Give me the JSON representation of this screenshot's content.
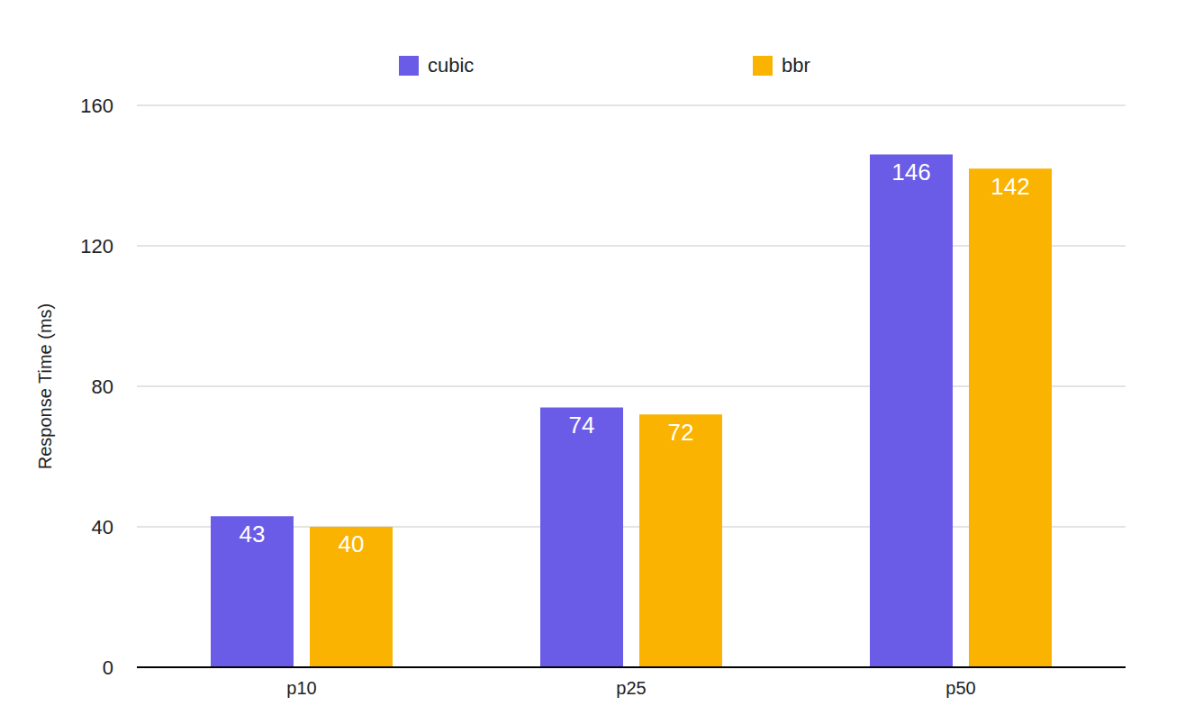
{
  "chart_data": {
    "type": "bar",
    "categories": [
      "p10",
      "p25",
      "p50"
    ],
    "series": [
      {
        "name": "cubic",
        "color": "#6b5ce7",
        "values": [
          43,
          74,
          146
        ]
      },
      {
        "name": "bbr",
        "color": "#f9b300",
        "values": [
          40,
          72,
          142
        ]
      }
    ],
    "y_label": "Response Time (ms)",
    "ylim": [
      0,
      160
    ],
    "yticks": [
      0,
      40,
      80,
      120,
      160
    ],
    "grid": true,
    "legend": "top",
    "data_labels": true
  }
}
